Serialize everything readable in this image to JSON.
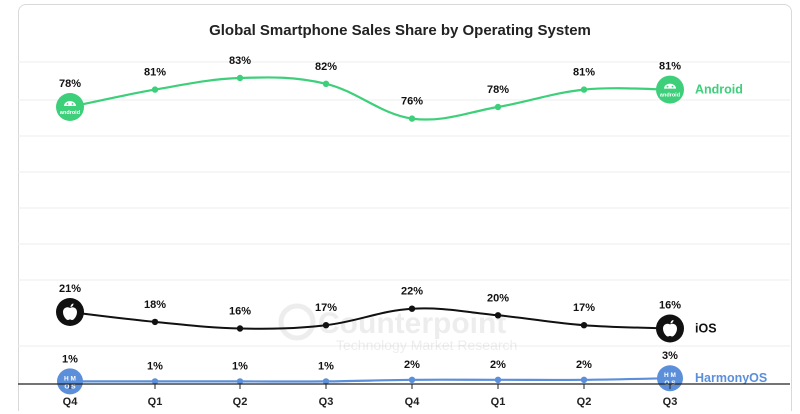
{
  "chart_data": {
    "type": "line",
    "title": "Global Smartphone Sales Share by Operating System",
    "categories": [
      "Q4",
      "Q1",
      "Q2",
      "Q3",
      "Q4",
      "Q1",
      "Q2",
      "Q3"
    ],
    "series": [
      {
        "name": "Android",
        "color": "#3ecf7a",
        "values": [
          78,
          81,
          83,
          82,
          76,
          78,
          81,
          81
        ],
        "labels": [
          "78%",
          "81%",
          "83%",
          "82%",
          "76%",
          "78%",
          "81%",
          "81%"
        ],
        "icon": "android-icon"
      },
      {
        "name": "iOS",
        "color": "#111111",
        "values": [
          21,
          18,
          16,
          17,
          22,
          20,
          17,
          16
        ],
        "labels": [
          "21%",
          "18%",
          "16%",
          "17%",
          "22%",
          "20%",
          "17%",
          "16%"
        ],
        "icon": "apple-icon"
      },
      {
        "name": "HarmonyOS",
        "color": "#5b8fd9",
        "values": [
          1,
          1,
          1,
          1,
          2,
          2,
          2,
          3
        ],
        "labels": [
          "1%",
          "1%",
          "1%",
          "1%",
          "2%",
          "2%",
          "2%",
          "3%"
        ],
        "icon": "harmonyos-icon"
      }
    ],
    "grid": true,
    "legend": "right, at line ends"
  },
  "icons": {
    "android_text": "android",
    "harmony_text_top": "H M",
    "harmony_text_bottom": "O S"
  },
  "watermark": {
    "brand": "Counterpoint",
    "tagline": "Technology Market Research"
  }
}
